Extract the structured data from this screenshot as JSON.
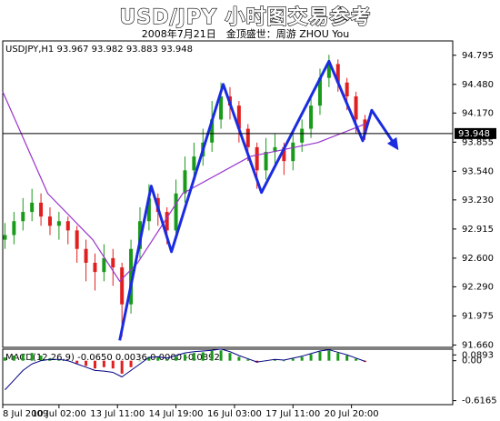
{
  "chart_data": {
    "type": "candlestick",
    "title": "USD/JPY 小时图交易参考",
    "subtitle": "2008年7月21日　金顶盛世：周游 ZHOU You",
    "symbol_header": "USDJPY,H1  93.967 93.982 93.883 93.948",
    "last_price": 93.948,
    "xlim": [
      0,
      200
    ],
    "ylim": [
      91.635,
      94.95
    ],
    "yticks": [
      94.795,
      {
        "value": 94.48,
        "label": "94.480"
      },
      {
        "value": 94.17,
        "label": "94.170"
      },
      93.855,
      {
        "value": 93.54,
        "label": "93.540"
      },
      {
        "value": 93.23,
        "label": "93.230"
      },
      92.915,
      {
        "value": 92.6,
        "label": "92.600"
      },
      {
        "value": 92.29,
        "label": "92.290"
      },
      91.975,
      {
        "value": 91.66,
        "label": "91.660"
      }
    ],
    "xticks": [
      {
        "value": 0,
        "label": "8 Jul 2009"
      },
      {
        "value": 25,
        "label": "10 Jul 02:00"
      },
      {
        "value": 51,
        "label": "13 Jul 11:00"
      },
      {
        "value": 77,
        "label": "14 Jul 19:00"
      },
      {
        "value": 103,
        "label": "16 Jul 03:00"
      },
      {
        "value": 129,
        "label": "17 Jul 11:00"
      },
      {
        "value": 155,
        "label": "20 Jul 20:00"
      }
    ],
    "up_color": "#1a9a1a",
    "down_color": "#e02020",
    "x": [
      1,
      5,
      9,
      13,
      17,
      21,
      25,
      29,
      33,
      37,
      41,
      45,
      49,
      53,
      57,
      61,
      65,
      69,
      73,
      77,
      81,
      85,
      89,
      93,
      97,
      101,
      105,
      109,
      113,
      117,
      121,
      125,
      129,
      133,
      137,
      141,
      145,
      149,
      153,
      157,
      161
    ],
    "candles": [
      [
        92.8,
        92.98,
        92.7,
        92.85
      ],
      [
        92.85,
        93.1,
        92.75,
        93.0
      ],
      [
        93.0,
        93.25,
        92.9,
        93.1
      ],
      [
        93.1,
        93.35,
        93.0,
        93.2
      ],
      [
        93.2,
        93.3,
        92.95,
        93.05
      ],
      [
        93.05,
        93.15,
        92.85,
        92.95
      ],
      [
        92.95,
        93.1,
        92.8,
        93.0
      ],
      [
        93.0,
        93.05,
        92.75,
        92.9
      ],
      [
        92.9,
        92.95,
        92.55,
        92.7
      ],
      [
        92.7,
        92.8,
        92.35,
        92.55
      ],
      [
        92.55,
        92.65,
        92.25,
        92.45
      ],
      [
        92.45,
        92.75,
        92.35,
        92.6
      ],
      [
        92.6,
        92.7,
        92.3,
        92.5
      ],
      [
        92.5,
        92.55,
        91.75,
        92.1
      ],
      [
        92.1,
        92.8,
        92.0,
        92.7
      ],
      [
        92.7,
        93.15,
        92.6,
        93.0
      ],
      [
        93.0,
        93.4,
        92.9,
        93.25
      ],
      [
        93.25,
        93.3,
        92.95,
        93.1
      ],
      [
        93.1,
        93.15,
        92.75,
        92.9
      ],
      [
        92.9,
        93.45,
        92.85,
        93.3
      ],
      [
        93.3,
        93.7,
        93.2,
        93.55
      ],
      [
        93.55,
        93.85,
        93.45,
        93.7
      ],
      [
        93.7,
        94.0,
        93.6,
        93.85
      ],
      [
        93.85,
        94.3,
        93.75,
        94.1
      ],
      [
        94.1,
        94.5,
        94.0,
        94.35
      ],
      [
        94.35,
        94.45,
        94.1,
        94.25
      ],
      [
        94.25,
        94.3,
        93.85,
        94.0
      ],
      [
        94.0,
        94.05,
        93.65,
        93.8
      ],
      [
        93.8,
        93.85,
        93.35,
        93.55
      ],
      [
        93.55,
        93.9,
        93.45,
        93.75
      ],
      [
        93.75,
        93.95,
        93.6,
        93.8
      ],
      [
        93.8,
        93.85,
        93.5,
        93.65
      ],
      [
        93.65,
        93.95,
        93.55,
        93.85
      ],
      [
        93.85,
        94.1,
        93.75,
        94.0
      ],
      [
        94.0,
        94.35,
        93.9,
        94.25
      ],
      [
        94.25,
        94.65,
        94.15,
        94.55
      ],
      [
        94.55,
        94.8,
        94.45,
        94.7
      ],
      [
        94.7,
        94.75,
        94.4,
        94.5
      ],
      [
        94.5,
        94.55,
        94.2,
        94.35
      ],
      [
        94.35,
        94.4,
        93.95,
        94.1
      ],
      [
        94.1,
        94.15,
        93.88,
        93.95
      ]
    ],
    "ma": {
      "color": "#9933cc",
      "x": [
        0,
        20,
        40,
        52,
        60,
        80,
        110,
        140,
        161
      ],
      "values": [
        94.4,
        93.3,
        92.8,
        92.35,
        92.55,
        93.3,
        93.7,
        93.85,
        94.05
      ]
    },
    "zigzag": {
      "color": "#1a2be0",
      "x": [
        52,
        66,
        75,
        98,
        115,
        145,
        160,
        164,
        175
      ],
      "values": [
        91.71,
        93.38,
        92.67,
        94.48,
        93.31,
        94.73,
        93.87,
        94.2,
        93.8
      ]
    },
    "macd": {
      "header": "MACD(12,26,9) -0.0650 0.0036 0.0000 -0.0892",
      "ylim": [
        -0.65,
        0.15
      ],
      "yticks": [
        0.0893,
        {
          "value": 0,
          "label": "0.00"
        },
        -0.6165
      ],
      "hist_color_up": "#1a9a1a",
      "hist_color_down": "#e02020",
      "line_color": "#000080",
      "hist": [
        0.05,
        0.08,
        0.1,
        0.12,
        0.08,
        0.04,
        0.02,
        0,
        -0.04,
        -0.08,
        -0.12,
        -0.1,
        -0.12,
        -0.2,
        -0.1,
        0,
        0.06,
        0.05,
        0.02,
        0.06,
        0.1,
        0.12,
        0.13,
        0.15,
        0.16,
        0.12,
        0.06,
        0.02,
        -0.03,
        0,
        0.02,
        0,
        0.03,
        0.06,
        0.1,
        0.14,
        0.16,
        0.12,
        0.08,
        0.03,
        -0.02
      ],
      "line": [
        -0.45,
        -0.3,
        -0.15,
        -0.05,
        0,
        0.02,
        0.02,
        0,
        -0.05,
        -0.1,
        -0.15,
        -0.16,
        -0.18,
        -0.25,
        -0.15,
        -0.05,
        0.05,
        0.06,
        0.04,
        0.08,
        0.12,
        0.14,
        0.15,
        0.16,
        0.18,
        0.14,
        0.08,
        0.03,
        -0.02,
        0,
        0.02,
        0.01,
        0.04,
        0.07,
        0.11,
        0.15,
        0.17,
        0.13,
        0.09,
        0.04,
        -0.01
      ]
    }
  }
}
